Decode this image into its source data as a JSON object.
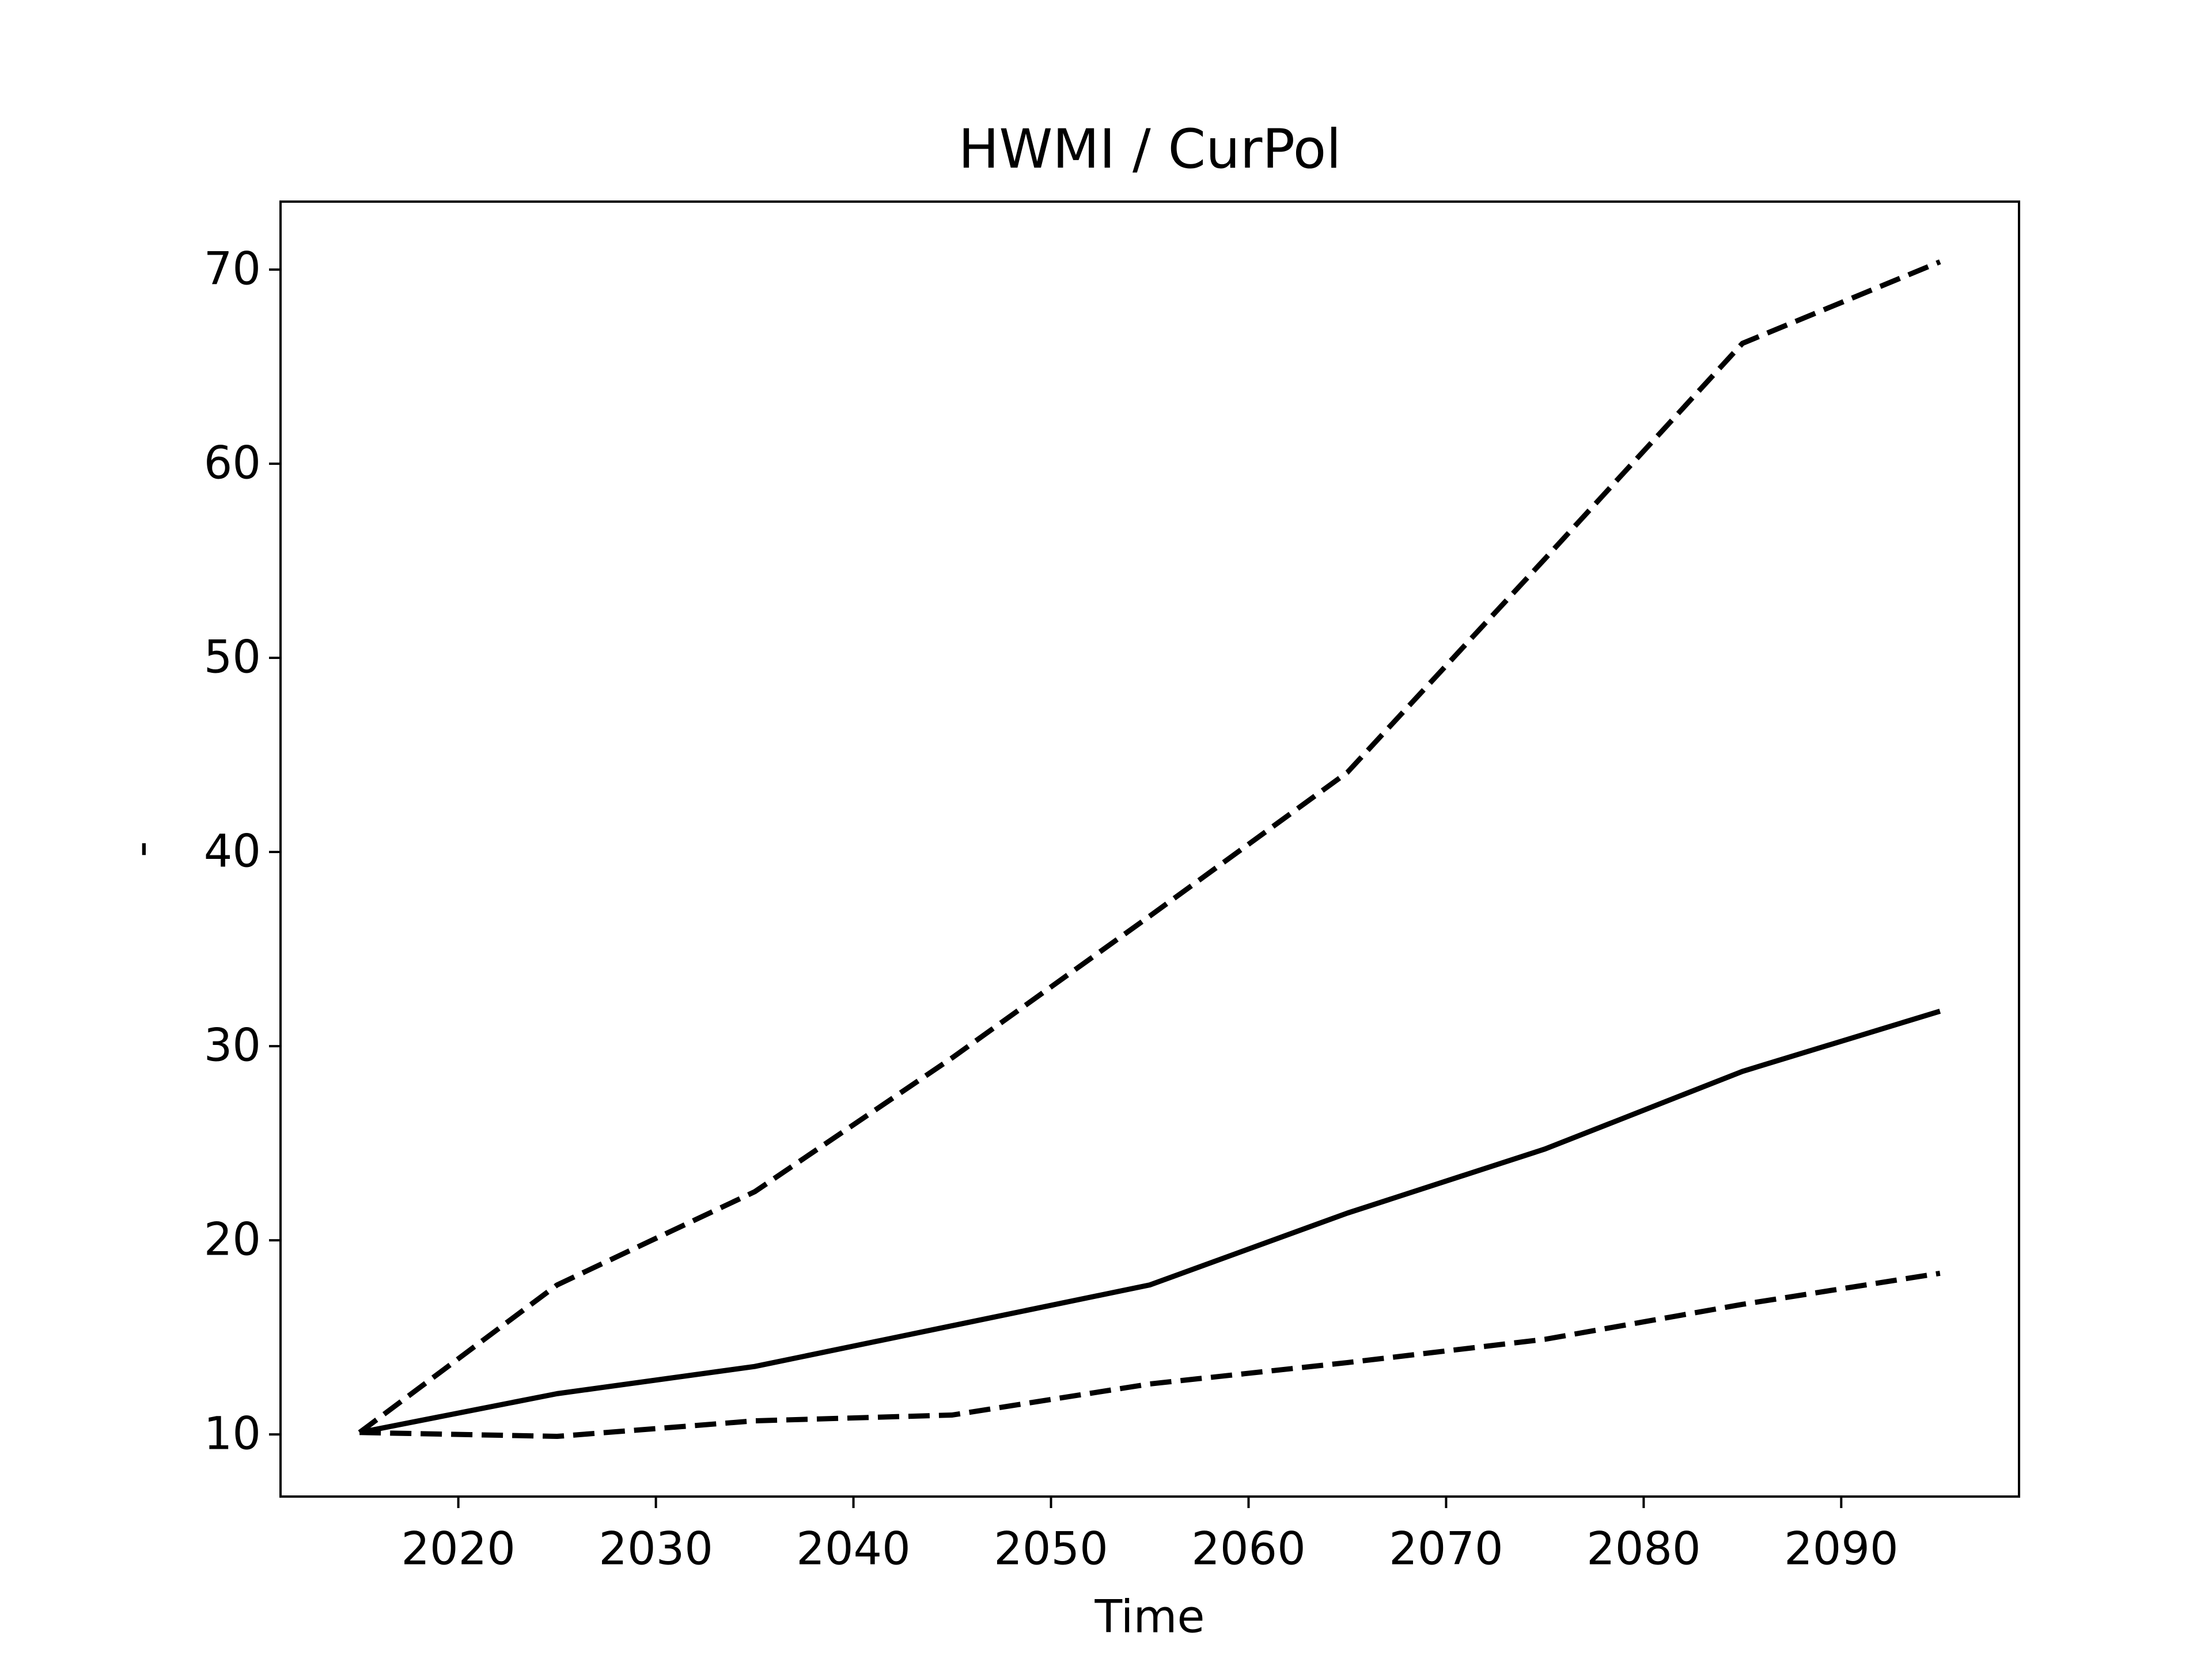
{
  "chart_data": {
    "type": "line",
    "title": "HWMI / CurPol",
    "x_label": "Time",
    "y_label": "-",
    "x": [
      2015,
      2025,
      2035,
      2045,
      2055,
      2065,
      2075,
      2085,
      2095
    ],
    "series": [
      {
        "color": "#000000",
        "linestyle": "solid",
        "values": [
          10.1,
          12.1,
          13.5,
          15.6,
          17.7,
          21.4,
          24.7,
          28.7,
          31.8
        ]
      },
      {
        "color": "#000000",
        "linestyle": "dashed",
        "values": [
          10.1,
          17.7,
          22.5,
          29.4,
          36.7,
          44.1,
          55.1,
          66.2,
          70.4
        ]
      },
      {
        "color": "#000000",
        "linestyle": "dashed",
        "values": [
          10.1,
          9.9,
          10.7,
          11.0,
          12.6,
          13.7,
          14.9,
          16.7,
          18.3
        ]
      }
    ],
    "xlim": [
      2011,
      2099
    ],
    "xticks": [
      2020,
      2030,
      2040,
      2050,
      2060,
      2070,
      2080,
      2090
    ],
    "ylim": [
      6.8,
      73.5
    ],
    "yticks": [
      10,
      20,
      30,
      40,
      50,
      60,
      70
    ],
    "grid": false
  }
}
